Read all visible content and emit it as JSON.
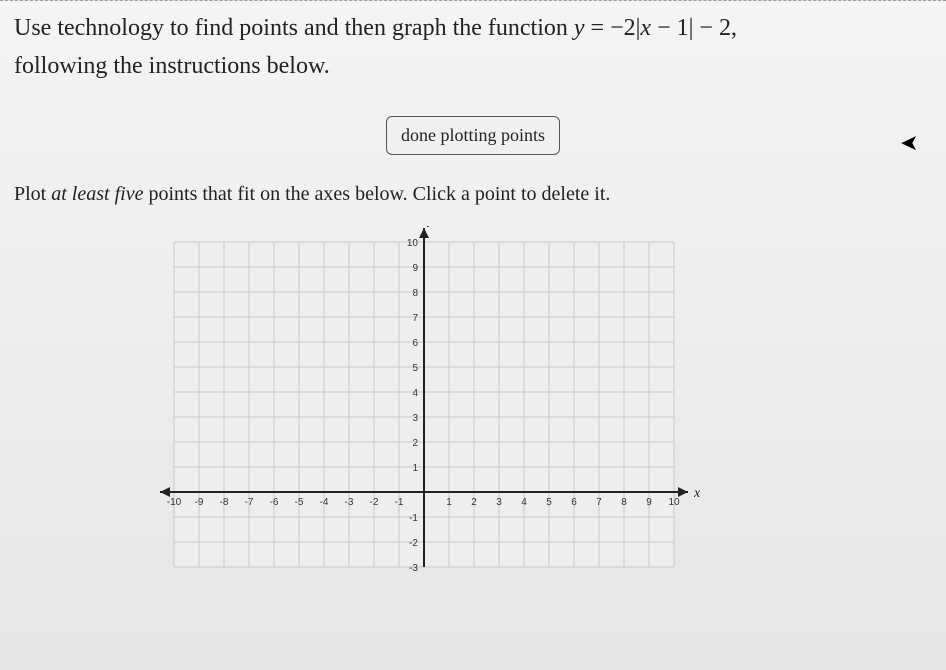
{
  "question": {
    "line1_prefix": "Use technology to find points and then graph the function ",
    "equation_html": "y = −2|x − 1| − 2,",
    "line2": "following the instructions below."
  },
  "button": {
    "done_label": "done plotting points"
  },
  "instructions": {
    "prefix": "Plot ",
    "emph": "at least five",
    "suffix": " points that fit on the axes below. Click a point to delete it."
  },
  "chart": {
    "type": "scatter",
    "x_axis_label": "x",
    "y_axis_label": "y",
    "xlim": [
      -10,
      10
    ],
    "ylim_visible": [
      -3,
      10
    ],
    "xtick_step": 1,
    "ytick_step": 1,
    "x_ticks": [
      -10,
      -9,
      -8,
      -7,
      -6,
      -5,
      -4,
      -3,
      -2,
      -1,
      1,
      2,
      3,
      4,
      5,
      6,
      7,
      8,
      9,
      10
    ],
    "y_ticks_visible": [
      -3,
      -2,
      -1,
      1,
      2,
      3,
      4,
      5,
      6,
      7,
      8,
      9,
      10
    ],
    "grid_color": "#c8c8cc",
    "axis_color": "#222222",
    "background_color": "#f4f4f6",
    "plot_background": "#eeeeee",
    "tick_font_size": 10,
    "axis_label_fontsize": 14,
    "arrowheads": true
  }
}
